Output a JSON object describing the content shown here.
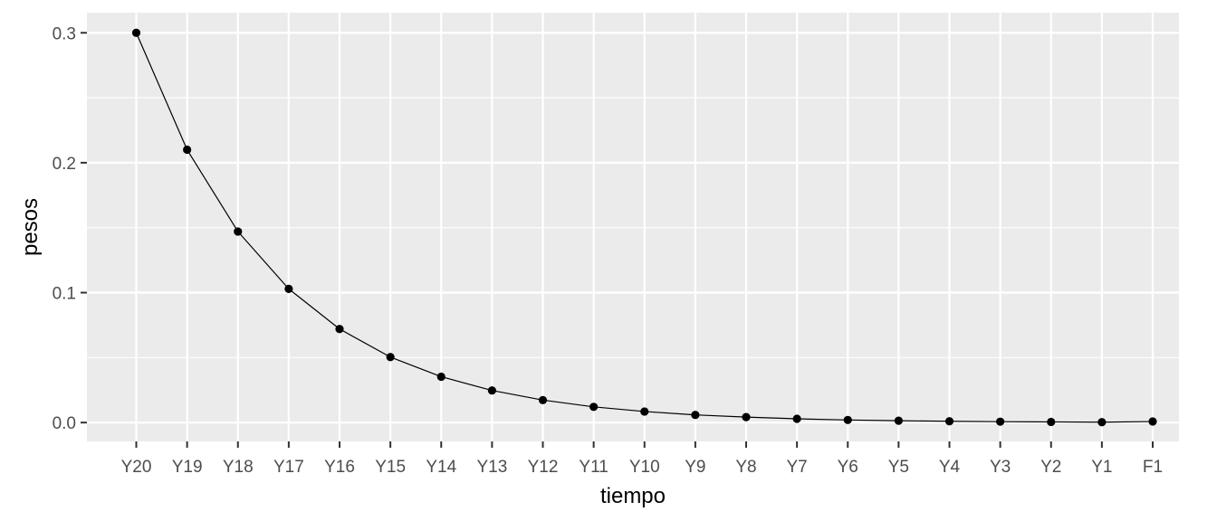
{
  "chart_data": {
    "type": "line",
    "xlabel": "tiempo",
    "ylabel": "pesos",
    "categories": [
      "Y20",
      "Y19",
      "Y18",
      "Y17",
      "Y16",
      "Y15",
      "Y14",
      "Y13",
      "Y12",
      "Y11",
      "Y10",
      "Y9",
      "Y8",
      "Y7",
      "Y6",
      "Y5",
      "Y4",
      "Y3",
      "Y2",
      "Y1",
      "F1"
    ],
    "values": [
      0.3,
      0.21,
      0.147,
      0.1029,
      0.072,
      0.0504,
      0.0353,
      0.0247,
      0.0173,
      0.0121,
      0.0085,
      0.0059,
      0.0042,
      0.0029,
      0.002,
      0.0014,
      0.001,
      0.0007,
      0.0005,
      0.0003,
      0.0008
    ],
    "ylim": [
      -0.0145,
      0.3155
    ],
    "yticks": [
      0.0,
      0.1,
      0.2,
      0.3
    ],
    "ytick_labels": [
      "0.0",
      "0.1",
      "0.2",
      "0.3"
    ],
    "grid": true,
    "line_color": "#000000",
    "panel_color": "#ebebeb",
    "grid_color": "#ffffff"
  }
}
